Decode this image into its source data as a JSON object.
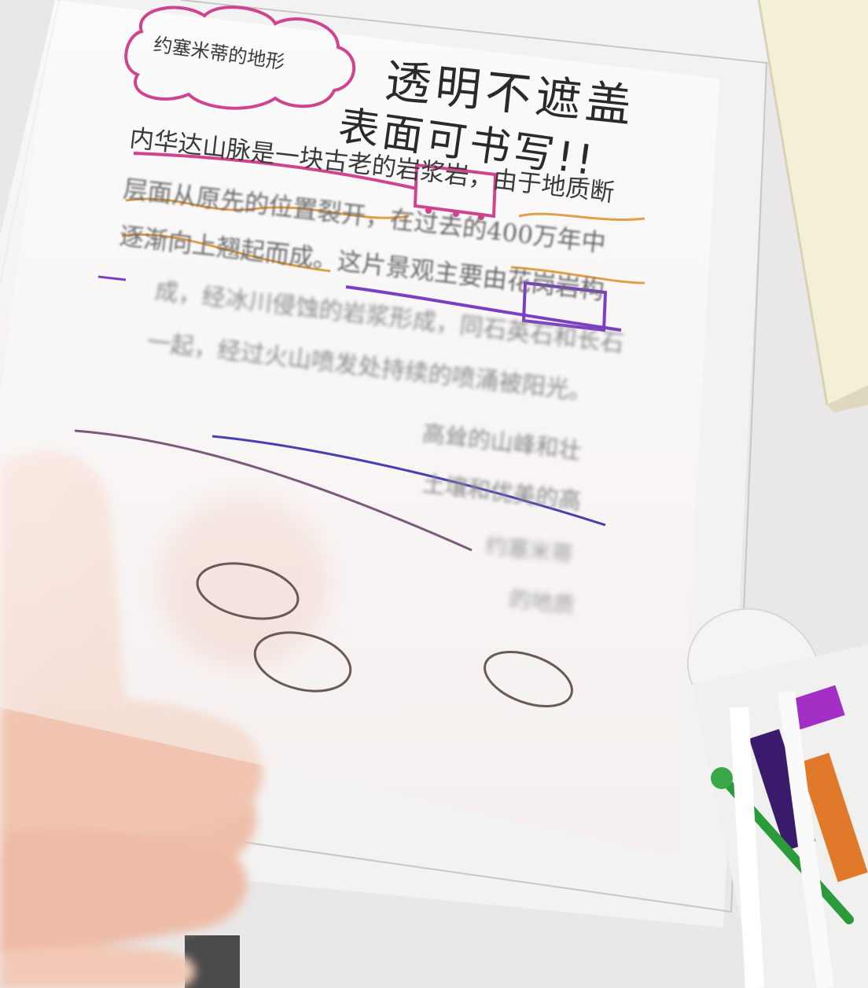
{
  "title_bubble": "约塞米蒂的地形",
  "handwritten": {
    "line1": "透明不遮盖",
    "line2": "表面可书写!!"
  },
  "printed_lines": [
    "内华达山脉是一块古老的岩浆岩，由于地质断",
    "层面从原先的位置裂开，在过去的400万年中",
    "逐渐向上翘起而成。这片景观主要由花岗岩构",
    "成，经冰川侵蚀的岩浆形成，同石英石和长石",
    "一起，经过火山喷发处持续的喷涌被阳光。",
    "高耸的山峰和壮",
    "土壤和优美的高",
    "约塞米蒂",
    "的地质"
  ],
  "boxed_words": [
    "岩浆岩",
    "花岗岩"
  ],
  "colors": {
    "pink": "#d0438e",
    "purple": "#7a3fc4",
    "orange": "#e0a04a",
    "blue": "#4a3fb0",
    "gray_pencil": "#6a5a55"
  }
}
